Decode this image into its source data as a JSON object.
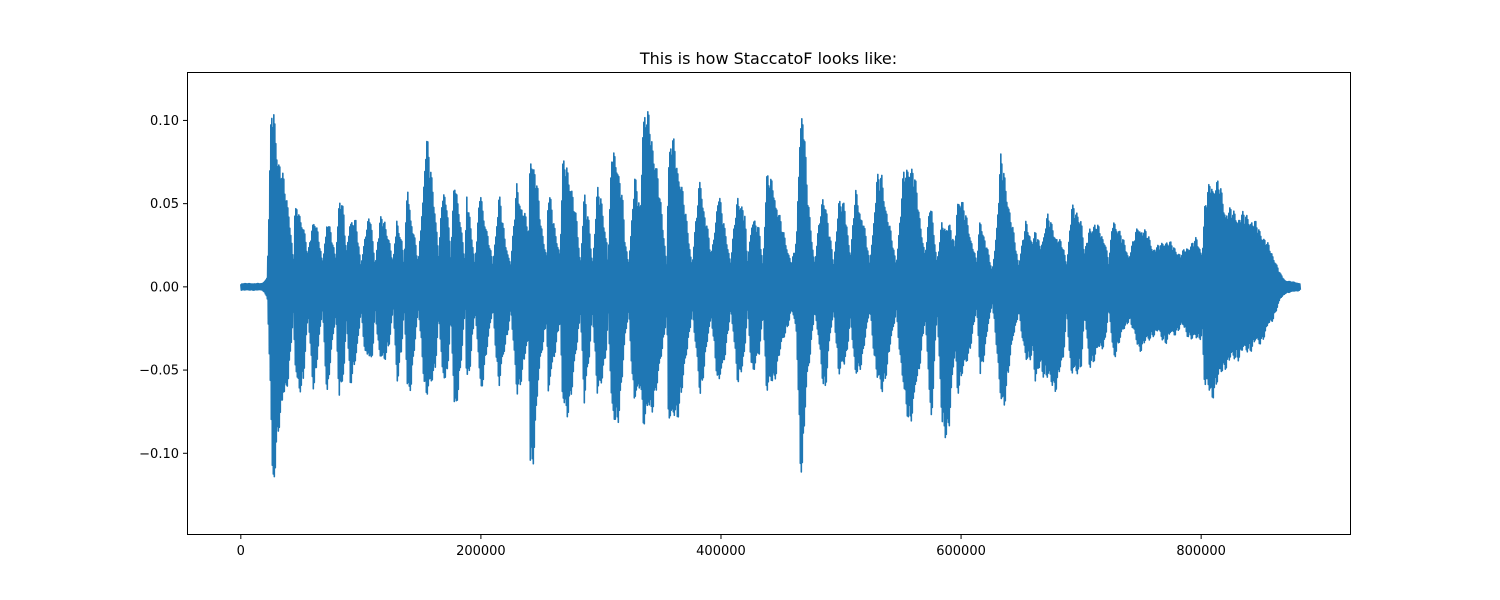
{
  "chart_data": {
    "type": "line",
    "title": "This is how StaccatoF looks like:",
    "xlabel": "",
    "ylabel": "",
    "xlim": [
      -44000,
      924000
    ],
    "ylim": [
      -0.1485,
      0.1285
    ],
    "x_ticks": [
      0,
      200000,
      400000,
      600000,
      800000
    ],
    "x_tick_labels": [
      "0",
      "200000",
      "400000",
      "600000",
      "800000"
    ],
    "y_ticks": [
      -0.1,
      -0.05,
      0.0,
      0.05,
      0.1
    ],
    "y_tick_labels": [
      "−0.10",
      "−0.05",
      "0.00",
      "0.05",
      "0.10"
    ],
    "grid": false,
    "legend": "none",
    "series": [
      {
        "color": "#1f77b4",
        "sample_range": [
          0,
          883000
        ],
        "envelope_x": [
          0,
          10000,
          18000,
          22000,
          25000,
          26000,
          27000,
          28000,
          31000,
          36000,
          40000,
          44000,
          45000,
          48000,
          52000,
          56000,
          60000,
          61000,
          64000,
          68000,
          72000,
          76000,
          79000,
          82000,
          86000,
          88000,
          91000,
          96000,
          100000,
          104000,
          108000,
          110000,
          112000,
          116000,
          120000,
          124000,
          127000,
          130000,
          134000,
          136000,
          139000,
          142000,
          148000,
          154000,
          155000,
          158000,
          162000,
          165000,
          168000,
          172000,
          175000,
          178000,
          182000,
          187000,
          188000,
          191000,
          195000,
          200000,
          201000,
          205000,
          210000,
          215000,
          216000,
          220000,
          225000,
          230000,
          240000,
          241000,
          243000,
          246000,
          250000,
          255000,
          256000,
          260000,
          266000,
          268000,
          272000,
          276000,
          280000,
          283000,
          286000,
          290000,
          293000,
          297000,
          300000,
          305000,
          306000,
          309000,
          314000,
          318000,
          320000,
          323000,
          328000,
          333000,
          335000,
          338000,
          342000,
          346000,
          350000,
          355000,
          356000,
          359000,
          364000,
          368000,
          372000,
          376000,
          382000,
          383000,
          386000,
          392000,
          398000,
          400000,
          404000,
          408000,
          414000,
          420000,
          422000,
          426000,
          432000,
          435000,
          438000,
          444000,
          450000,
          459000,
          463000,
          466000,
          468000,
          472000,
          478000,
          485000,
          487000,
          490000,
          494000,
          498000,
          503000,
          505000,
          508000,
          512000,
          518000,
          524000,
          530000,
          534000,
          536000,
          540000,
          546000,
          552000,
          557000,
          560000,
          564000,
          570000,
          575000,
          577000,
          580000,
          584000,
          590000,
          595000,
          597000,
          600000,
          606000,
          613000,
          616000,
          620000,
          626000,
          630000,
          633000,
          636000,
          640000,
          648000,
          654000,
          660000,
          662000,
          666000,
          672000,
          678000,
          685000,
          688000,
          692000,
          700000,
          703000,
          707000,
          712000,
          720000,
          723000,
          727000,
          732000,
          740000,
          748000,
          756000,
          760000,
          764000,
          770000,
          778000,
          783000,
          788000,
          796000,
          801000,
          803000,
          808000,
          815000,
          820000,
          830000,
          840000,
          850000,
          860000,
          866000,
          870000,
          876000,
          883000
        ],
        "envelope_upper": [
          0.002,
          0.002,
          0.002,
          0.006,
          0.098,
          0.112,
          0.115,
          0.108,
          0.085,
          0.065,
          0.05,
          0.015,
          0.046,
          0.05,
          0.04,
          0.02,
          0.043,
          0.046,
          0.035,
          0.015,
          0.045,
          0.03,
          0.018,
          0.06,
          0.045,
          0.02,
          0.045,
          0.04,
          0.015,
          0.035,
          0.045,
          0.03,
          0.015,
          0.042,
          0.043,
          0.028,
          0.015,
          0.045,
          0.03,
          0.015,
          0.065,
          0.045,
          0.015,
          0.09,
          0.093,
          0.075,
          0.05,
          0.02,
          0.06,
          0.055,
          0.02,
          0.068,
          0.05,
          0.015,
          0.058,
          0.045,
          0.015,
          0.065,
          0.055,
          0.035,
          0.015,
          0.058,
          0.055,
          0.03,
          0.015,
          0.065,
          0.035,
          0.085,
          0.086,
          0.07,
          0.04,
          0.02,
          0.062,
          0.045,
          0.02,
          0.075,
          0.08,
          0.06,
          0.04,
          0.015,
          0.06,
          0.04,
          0.015,
          0.062,
          0.055,
          0.03,
          0.015,
          0.085,
          0.082,
          0.055,
          0.03,
          0.015,
          0.068,
          0.05,
          0.11,
          0.11,
          0.098,
          0.08,
          0.05,
          0.015,
          0.075,
          0.095,
          0.08,
          0.06,
          0.038,
          0.015,
          0.065,
          0.07,
          0.05,
          0.02,
          0.06,
          0.05,
          0.035,
          0.015,
          0.06,
          0.045,
          0.015,
          0.045,
          0.035,
          0.015,
          0.07,
          0.064,
          0.04,
          0.015,
          0.03,
          0.11,
          0.115,
          0.06,
          0.015,
          0.06,
          0.055,
          0.035,
          0.015,
          0.055,
          0.05,
          0.04,
          0.02,
          0.06,
          0.045,
          0.015,
          0.068,
          0.07,
          0.06,
          0.04,
          0.015,
          0.07,
          0.08,
          0.075,
          0.055,
          0.02,
          0.056,
          0.04,
          0.015,
          0.04,
          0.04,
          0.025,
          0.06,
          0.055,
          0.04,
          0.015,
          0.045,
          0.03,
          0.01,
          0.04,
          0.08,
          0.075,
          0.05,
          0.015,
          0.04,
          0.03,
          0.035,
          0.025,
          0.045,
          0.035,
          0.025,
          0.015,
          0.05,
          0.045,
          0.02,
          0.038,
          0.04,
          0.03,
          0.015,
          0.045,
          0.035,
          0.02,
          0.04,
          0.032,
          0.025,
          0.025,
          0.03,
          0.025,
          0.02,
          0.025,
          0.03,
          0.022,
          0.05,
          0.068,
          0.065,
          0.05,
          0.046,
          0.045,
          0.035,
          0.02,
          0.008,
          0.004,
          0.003,
          0.002
        ],
        "envelope_lower": [
          -0.002,
          -0.002,
          -0.002,
          -0.006,
          -0.075,
          -0.128,
          -0.131,
          -0.12,
          -0.09,
          -0.075,
          -0.055,
          -0.015,
          -0.055,
          -0.066,
          -0.06,
          -0.02,
          -0.06,
          -0.064,
          -0.045,
          -0.015,
          -0.07,
          -0.04,
          -0.018,
          -0.068,
          -0.06,
          -0.02,
          -0.06,
          -0.05,
          -0.015,
          -0.045,
          -0.05,
          -0.04,
          -0.015,
          -0.05,
          -0.045,
          -0.035,
          -0.015,
          -0.06,
          -0.04,
          -0.015,
          -0.07,
          -0.06,
          -0.015,
          -0.07,
          -0.072,
          -0.065,
          -0.05,
          -0.02,
          -0.06,
          -0.055,
          -0.02,
          -0.085,
          -0.06,
          -0.015,
          -0.065,
          -0.05,
          -0.015,
          -0.07,
          -0.062,
          -0.04,
          -0.015,
          -0.065,
          -0.06,
          -0.04,
          -0.015,
          -0.07,
          -0.035,
          -0.11,
          -0.114,
          -0.085,
          -0.045,
          -0.02,
          -0.075,
          -0.05,
          -0.02,
          -0.08,
          -0.08,
          -0.065,
          -0.04,
          -0.015,
          -0.075,
          -0.05,
          -0.015,
          -0.07,
          -0.066,
          -0.035,
          -0.015,
          -0.085,
          -0.085,
          -0.06,
          -0.035,
          -0.015,
          -0.08,
          -0.06,
          -0.085,
          -0.085,
          -0.08,
          -0.065,
          -0.05,
          -0.015,
          -0.08,
          -0.09,
          -0.08,
          -0.065,
          -0.04,
          -0.015,
          -0.065,
          -0.07,
          -0.05,
          -0.02,
          -0.065,
          -0.06,
          -0.04,
          -0.015,
          -0.06,
          -0.045,
          -0.015,
          -0.055,
          -0.045,
          -0.015,
          -0.068,
          -0.06,
          -0.04,
          -0.015,
          -0.03,
          -0.11,
          -0.115,
          -0.06,
          -0.015,
          -0.06,
          -0.065,
          -0.04,
          -0.015,
          -0.055,
          -0.052,
          -0.04,
          -0.02,
          -0.06,
          -0.045,
          -0.015,
          -0.06,
          -0.068,
          -0.06,
          -0.045,
          -0.015,
          -0.07,
          -0.085,
          -0.08,
          -0.06,
          -0.02,
          -0.09,
          -0.06,
          -0.015,
          -0.09,
          -0.092,
          -0.04,
          -0.065,
          -0.06,
          -0.045,
          -0.015,
          -0.055,
          -0.04,
          -0.01,
          -0.04,
          -0.08,
          -0.075,
          -0.05,
          -0.015,
          -0.05,
          -0.04,
          -0.065,
          -0.05,
          -0.06,
          -0.065,
          -0.05,
          -0.015,
          -0.06,
          -0.05,
          -0.02,
          -0.05,
          -0.045,
          -0.035,
          -0.015,
          -0.045,
          -0.035,
          -0.02,
          -0.04,
          -0.035,
          -0.03,
          -0.03,
          -0.035,
          -0.03,
          -0.025,
          -0.03,
          -0.035,
          -0.03,
          -0.065,
          -0.07,
          -0.06,
          -0.05,
          -0.045,
          -0.04,
          -0.035,
          -0.02,
          -0.008,
          -0.004,
          -0.003,
          -0.002
        ]
      }
    ]
  }
}
